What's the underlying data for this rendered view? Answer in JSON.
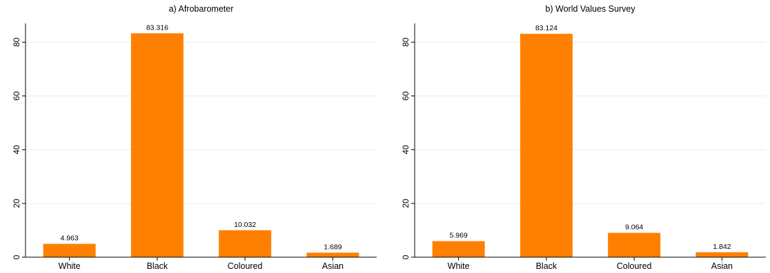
{
  "style": {
    "bar_color": "#ff8000",
    "grid_color": "#eaeaea",
    "axis_color": "#000000"
  },
  "chart_data": [
    {
      "type": "bar",
      "title": "a) Afrobarometer",
      "categories": [
        "White",
        "Black",
        "Coloured",
        "Asian"
      ],
      "values": [
        4.963,
        83.316,
        10.032,
        1.689
      ],
      "value_labels": [
        "4.963",
        "83.316",
        "10.032",
        "1.689"
      ],
      "ylim": [
        0,
        87
      ],
      "yticks": [
        0,
        20,
        40,
        60,
        80
      ],
      "ytick_labels": [
        "0",
        "20",
        "40",
        "60",
        "80"
      ],
      "xlabel": "",
      "ylabel": "",
      "grid": true
    },
    {
      "type": "bar",
      "title": "b) World Values Survey",
      "categories": [
        "White",
        "Black",
        "Coloured",
        "Asian"
      ],
      "values": [
        5.969,
        83.124,
        9.064,
        1.842
      ],
      "value_labels": [
        "5.969",
        "83.124",
        "9.064",
        "1.842"
      ],
      "ylim": [
        0,
        87
      ],
      "yticks": [
        0,
        20,
        40,
        60,
        80
      ],
      "ytick_labels": [
        "0",
        "20",
        "40",
        "60",
        "80"
      ],
      "xlabel": "",
      "ylabel": "",
      "grid": true
    }
  ]
}
